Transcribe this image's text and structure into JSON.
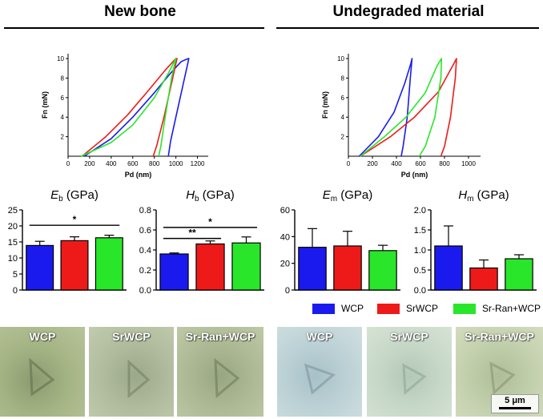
{
  "sections": {
    "left_title": "New bone",
    "right_title": "Undegraded material"
  },
  "colors": {
    "WCP": "#1a1aee",
    "SrWCP": "#ee1a1a",
    "SrRanWCP": "#2ae62a"
  },
  "legend": [
    "WCP",
    "SrWCP",
    "Sr-Ran+WCP"
  ],
  "chart_data": [
    {
      "id": "newbone-curves",
      "type": "line",
      "xlabel": "Pd (nm)",
      "ylabel": "Fn (mN)",
      "xlim": [
        0,
        1300
      ],
      "ylim": [
        0,
        10.5
      ],
      "xticks": [
        0,
        200,
        400,
        600,
        800,
        1000,
        1200
      ],
      "yticks": [
        2,
        4,
        6,
        8,
        10
      ],
      "series": [
        {
          "color_key": "WCP",
          "x": [
            150,
            400,
            600,
            800,
            950,
            1050,
            1115,
            1120,
            1080,
            1000,
            950,
            930
          ],
          "y": [
            0,
            1.8,
            4,
            6.5,
            8.5,
            9.7,
            10,
            10,
            8,
            4,
            1.5,
            0
          ]
        },
        {
          "color_key": "SrWCP",
          "x": [
            130,
            350,
            550,
            750,
            900,
            1000,
            1010,
            970,
            890,
            820,
            790
          ],
          "y": [
            0,
            2,
            4.2,
            6.8,
            8.8,
            10,
            10,
            8,
            4,
            1,
            0
          ]
        },
        {
          "color_key": "SrRanWCP",
          "x": [
            120,
            400,
            600,
            800,
            930,
            990,
            1000,
            960,
            900,
            860,
            840
          ],
          "y": [
            0,
            1.4,
            3.2,
            6,
            8.5,
            9.8,
            10,
            8,
            4,
            1,
            0
          ]
        }
      ]
    },
    {
      "id": "undegraded-curves",
      "type": "line",
      "xlabel": "Pd (nm)",
      "ylabel": "Fn (mN)",
      "xlim": [
        0,
        1100
      ],
      "ylim": [
        0,
        10.5
      ],
      "xticks": [
        0,
        200,
        400,
        600,
        800,
        1000
      ],
      "yticks": [
        2,
        4,
        6,
        8,
        10
      ],
      "series": [
        {
          "color_key": "WCP",
          "x": [
            90,
            250,
            380,
            470,
            520,
            530,
            515,
            490,
            455,
            440
          ],
          "y": [
            0,
            2,
            4.5,
            7.5,
            9.5,
            10,
            8,
            4,
            1,
            0
          ]
        },
        {
          "color_key": "SrWCP",
          "x": [
            100,
            350,
            550,
            750,
            870,
            900,
            890,
            850,
            800,
            770
          ],
          "y": [
            0,
            2,
            4,
            6.6,
            9.3,
            10,
            8,
            4,
            1,
            0
          ]
        },
        {
          "color_key": "SrRanWCP",
          "x": [
            100,
            300,
            480,
            640,
            740,
            775,
            770,
            720,
            640,
            590
          ],
          "y": [
            0,
            2,
            4,
            6.5,
            9.3,
            10,
            8,
            4,
            1,
            0
          ]
        }
      ]
    },
    {
      "id": "Eb",
      "type": "bar",
      "title_main": "E",
      "title_sub": "b",
      "title_unit": " (GPa)",
      "categories": [
        "WCP",
        "SrWCP",
        "Sr-Ran+WCP"
      ],
      "values": [
        13.9,
        15.4,
        16.3
      ],
      "errors": [
        1.3,
        1.2,
        0.8
      ],
      "ylim": [
        0,
        25
      ],
      "yticks": [
        0,
        5,
        10,
        15,
        20,
        25
      ],
      "yticklabels": [
        "0",
        "5",
        "10",
        "15",
        "20",
        "25"
      ],
      "significance": [
        {
          "from": 0,
          "to": 2,
          "y": 20.2,
          "label": "*"
        }
      ]
    },
    {
      "id": "Hb",
      "type": "bar",
      "title_main": "H",
      "title_sub": "b",
      "title_unit": " (GPa)",
      "categories": [
        "WCP",
        "SrWCP",
        "Sr-Ran+WCP"
      ],
      "values": [
        0.36,
        0.46,
        0.47
      ],
      "errors": [
        0.01,
        0.03,
        0.06
      ],
      "ylim": [
        0,
        0.8
      ],
      "yticks": [
        0,
        0.2,
        0.4,
        0.6,
        0.8
      ],
      "yticklabels": [
        "0.0",
        "0.2",
        "0.4",
        "0.6",
        "0.8"
      ],
      "significance": [
        {
          "from": 0,
          "to": 2,
          "y": 0.625,
          "label": "*"
        },
        {
          "from": 0,
          "to": 1,
          "y": 0.515,
          "label": "**"
        }
      ]
    },
    {
      "id": "Em",
      "type": "bar",
      "title_main": "E",
      "title_sub": "m",
      "title_unit": " (GPa)",
      "categories": [
        "WCP",
        "SrWCP",
        "Sr-Ran+WCP"
      ],
      "values": [
        32,
        33,
        29.5
      ],
      "errors": [
        14,
        11,
        4
      ],
      "ylim": [
        0,
        60
      ],
      "yticks": [
        0,
        20,
        40,
        60
      ],
      "yticklabels": [
        "0",
        "20",
        "40",
        "60"
      ],
      "significance": []
    },
    {
      "id": "Hm",
      "type": "bar",
      "title_main": "H",
      "title_sub": "m",
      "title_unit": " (GPa)",
      "categories": [
        "WCP",
        "SrWCP",
        "Sr-Ran+WCP"
      ],
      "values": [
        1.1,
        0.55,
        0.78
      ],
      "errors": [
        0.5,
        0.2,
        0.1
      ],
      "ylim": [
        0,
        2.0
      ],
      "yticks": [
        0,
        0.5,
        1.0,
        1.5,
        2.0
      ],
      "yticklabels": [
        "0.0",
        "0.5",
        "1.0",
        "1.5",
        "2.0"
      ],
      "significance": []
    }
  ],
  "photos": {
    "newbone": [
      "WCP",
      "SrWCP",
      "Sr-Ran+WCP"
    ],
    "undegraded": [
      "WCP",
      "SrWCP",
      "Sr-Ran+WCP"
    ],
    "scale_bar": "5 μm"
  }
}
